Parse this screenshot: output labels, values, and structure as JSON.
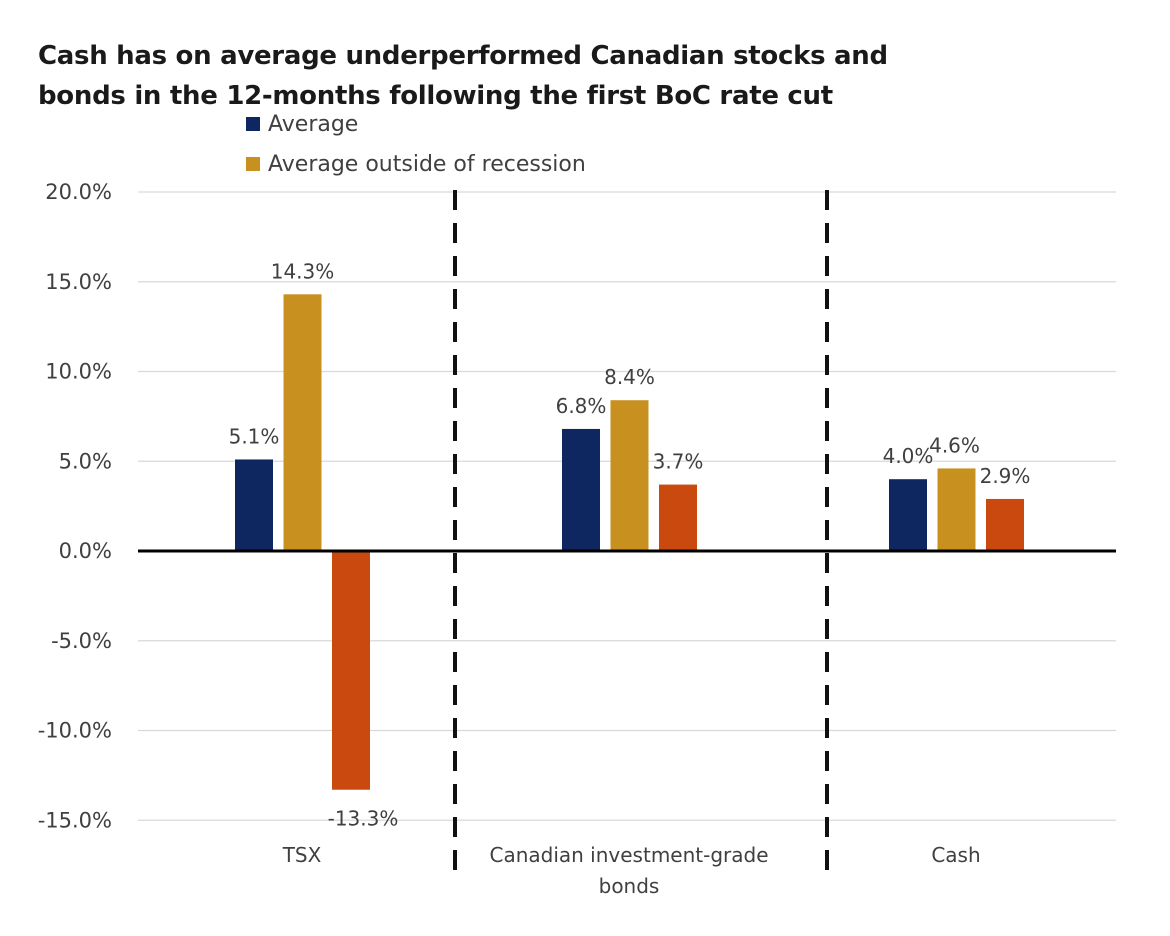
{
  "chart_data": {
    "type": "bar",
    "title_lines": [
      "Cash has on average underperformed Canadian stocks and",
      "bonds in the 12-months following the first BoC rate cut"
    ],
    "categories": [
      [
        "TSX"
      ],
      [
        "Canadian investment-grade",
        "bonds"
      ],
      [
        "Cash"
      ]
    ],
    "series": [
      {
        "name": "Average",
        "color": "#0e2760",
        "values": [
          5.1,
          6.8,
          4.0
        ],
        "labels": [
          "5.1%",
          "6.8%",
          "4.0%"
        ]
      },
      {
        "name": "Average outside of recession",
        "color": "#c8901f",
        "values": [
          14.3,
          8.4,
          4.6
        ],
        "labels": [
          "14.3%",
          "8.4%",
          "4.6%"
        ]
      },
      {
        "color": "#c9490f",
        "values": [
          -13.3,
          3.7,
          2.9
        ],
        "labels": [
          "-13.3%",
          "3.7%",
          "2.9%"
        ]
      }
    ],
    "ylim": [
      -15,
      20
    ],
    "yticks": [
      20,
      15,
      10,
      5,
      0,
      -5,
      -10,
      -15
    ],
    "ytick_labels": [
      "20.0%",
      "15.0%",
      "10.0%",
      "5.0%",
      "0.0%",
      "-5.0%",
      "-10.0%",
      "-15.0%"
    ],
    "grid": true,
    "legend_position": "top-left",
    "category_separators": "dashed"
  }
}
